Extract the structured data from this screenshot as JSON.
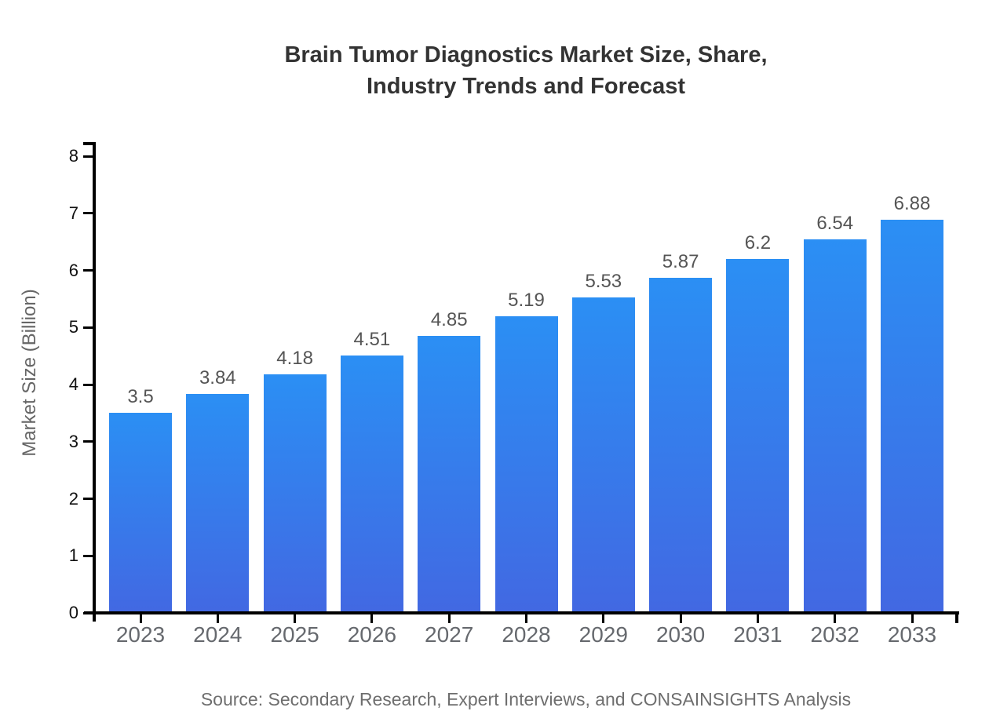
{
  "title": {
    "line1": "Brain Tumor Diagnostics Market Size, Share,",
    "line2": "Industry Trends and Forecast"
  },
  "source_note": "Source: Secondary Research, Expert Interviews, and CONSAINSIGHTS Analysis",
  "chart_data": {
    "type": "bar",
    "title": "Brain Tumor Diagnostics Market Size, Share, Industry Trends and Forecast",
    "categories": [
      "2023",
      "2024",
      "2025",
      "2026",
      "2027",
      "2028",
      "2029",
      "2030",
      "2031",
      "2032",
      "2033"
    ],
    "values": [
      3.5,
      3.84,
      4.18,
      4.51,
      4.85,
      5.19,
      5.53,
      5.87,
      6.2,
      6.54,
      6.88
    ],
    "value_labels": [
      "3.5",
      "3.84",
      "4.18",
      "4.51",
      "4.85",
      "5.19",
      "5.53",
      "5.87",
      "6.2",
      "6.54",
      "6.88"
    ],
    "xlabel": "",
    "ylabel": "Market Size (Billion)",
    "ylim": [
      0,
      8
    ],
    "yticks": [
      0,
      1,
      2,
      3,
      4,
      5,
      6,
      7,
      8
    ],
    "grid": false,
    "legend": "none",
    "colors": {
      "bar_gradient_top": "#2B8FF4",
      "bar_gradient_bottom": "#4268E2",
      "axis": "#000000",
      "value_label": "#555555",
      "y_tick_label": "#111111",
      "x_tick_label": "#66696e",
      "axis_title": "#666666",
      "title": "#333333",
      "source": "#6e6e6e"
    }
  }
}
